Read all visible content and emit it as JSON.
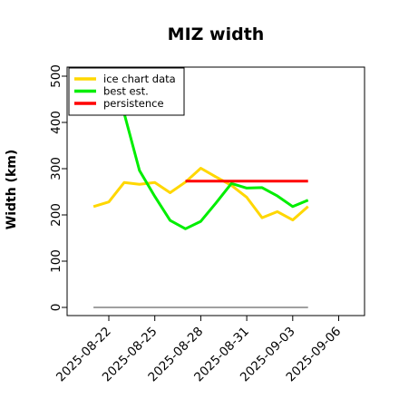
{
  "chart_data": {
    "type": "line",
    "title": "MIZ width",
    "ylabel": "Width (km)",
    "xlabel": "",
    "ylim": [
      0,
      500
    ],
    "yticks": [
      0,
      100,
      200,
      300,
      400,
      500
    ],
    "xlim": [
      "2025-08-19",
      "2025-09-08"
    ],
    "xticks": [
      "2025-08-22",
      "2025-08-25",
      "2025-08-28",
      "2025-08-31",
      "2025-09-03",
      "2025-09-06"
    ],
    "legend_position": "top-left",
    "grid": false,
    "series": [
      {
        "name": "ice chart data",
        "color": "#FFD700",
        "x": [
          "2025-08-21",
          "2025-08-22",
          "2025-08-23",
          "2025-08-24",
          "2025-08-25",
          "2025-08-26",
          "2025-08-27",
          "2025-08-28",
          "2025-08-29",
          "2025-08-30",
          "2025-08-31",
          "2025-09-01",
          "2025-09-02",
          "2025-09-03",
          "2025-09-04"
        ],
        "values": [
          218,
          228,
          270,
          266,
          270,
          248,
          271,
          301,
          282,
          264,
          238,
          194,
          207,
          189,
          218
        ]
      },
      {
        "name": "best est.",
        "color": "#00EE00",
        "x": [
          "2025-08-22",
          "2025-08-23",
          "2025-08-24",
          "2025-08-25",
          "2025-08-26",
          "2025-08-27",
          "2025-08-28",
          "2025-08-29",
          "2025-08-30",
          "2025-08-31",
          "2025-09-01",
          "2025-09-02",
          "2025-09-03",
          "2025-09-04"
        ],
        "values": [
          510,
          420,
          296,
          240,
          188,
          170,
          186,
          226,
          268,
          258,
          259,
          241,
          218,
          232
        ]
      },
      {
        "name": "persistence",
        "color": "#FF0000",
        "x": [
          "2025-08-27",
          "2025-09-04"
        ],
        "values": [
          273,
          273
        ]
      },
      {
        "name": "",
        "color": "#808080",
        "x": [
          "2025-08-21",
          "2025-09-04"
        ],
        "values": [
          0,
          0
        ]
      }
    ]
  }
}
